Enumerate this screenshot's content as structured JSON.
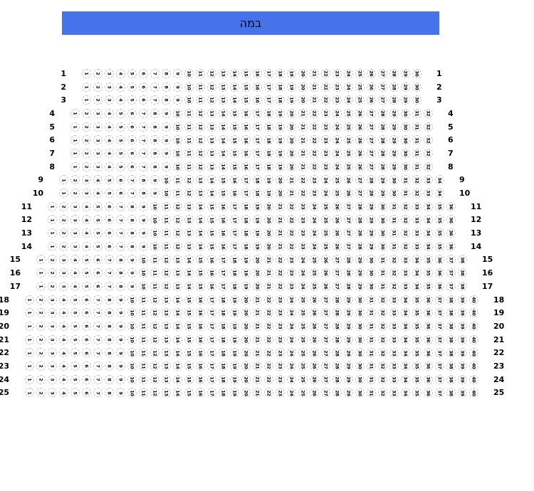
{
  "stage": {
    "label": "במה"
  },
  "theme": {
    "stage_color": "#4573eb",
    "stage_text_color": "#000000",
    "seat_border_color": "#c3c3c3",
    "seat_number_color": "#000000",
    "row_label_color": "#000000",
    "background": "#ffffff"
  },
  "seating": {
    "rows": [
      {
        "row": "1",
        "first_seat": 1,
        "last_seat": 30
      },
      {
        "row": "2",
        "first_seat": 1,
        "last_seat": 30
      },
      {
        "row": "3",
        "first_seat": 1,
        "last_seat": 30
      },
      {
        "row": "4",
        "first_seat": 1,
        "last_seat": 32
      },
      {
        "row": "5",
        "first_seat": 1,
        "last_seat": 32
      },
      {
        "row": "6",
        "first_seat": 1,
        "last_seat": 32
      },
      {
        "row": "7",
        "first_seat": 1,
        "last_seat": 32
      },
      {
        "row": "8",
        "first_seat": 1,
        "last_seat": 32
      },
      {
        "row": "9",
        "first_seat": 1,
        "last_seat": 34
      },
      {
        "row": "10",
        "first_seat": 1,
        "last_seat": 34
      },
      {
        "row": "11",
        "first_seat": 1,
        "last_seat": 36
      },
      {
        "row": "12",
        "first_seat": 1,
        "last_seat": 36
      },
      {
        "row": "13",
        "first_seat": 1,
        "last_seat": 36
      },
      {
        "row": "14",
        "first_seat": 1,
        "last_seat": 36
      },
      {
        "row": "15",
        "first_seat": 1,
        "last_seat": 38
      },
      {
        "row": "16",
        "first_seat": 1,
        "last_seat": 38
      },
      {
        "row": "17",
        "first_seat": 1,
        "last_seat": 38
      },
      {
        "row": "18",
        "first_seat": 1,
        "last_seat": 40
      },
      {
        "row": "19",
        "first_seat": 1,
        "last_seat": 40
      },
      {
        "row": "20",
        "first_seat": 1,
        "last_seat": 40
      },
      {
        "row": "21",
        "first_seat": 1,
        "last_seat": 40
      },
      {
        "row": "22",
        "first_seat": 1,
        "last_seat": 40
      },
      {
        "row": "23",
        "first_seat": 1,
        "last_seat": 40
      },
      {
        "row": "24",
        "first_seat": 1,
        "last_seat": 40
      },
      {
        "row": "25",
        "first_seat": 1,
        "last_seat": 40
      }
    ]
  }
}
